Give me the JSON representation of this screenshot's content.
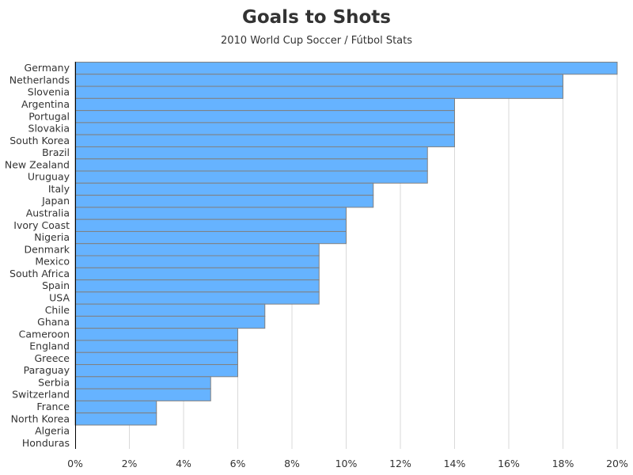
{
  "chart_data": {
    "type": "bar",
    "orientation": "horizontal",
    "title": "Goals to Shots",
    "subtitle": "2010 World Cup Soccer / Fútbol Stats",
    "xlabel": "",
    "ylabel": "",
    "xlim": [
      0,
      20
    ],
    "x_ticks": [
      "0%",
      "2%",
      "4%",
      "6%",
      "8%",
      "10%",
      "12%",
      "14%",
      "16%",
      "18%",
      "20%"
    ],
    "grid": "vertical",
    "bar_color": "#66b3ff",
    "bar_edge_color": "#808080",
    "categories": [
      "Germany",
      "Netherlands",
      "Slovenia",
      "Argentina",
      "Portugal",
      "Slovakia",
      "South Korea",
      "Brazil",
      "New Zealand",
      "Uruguay",
      "Italy",
      "Japan",
      "Australia",
      "Ivory Coast",
      "Nigeria",
      "Denmark",
      "Mexico",
      "South Africa",
      "Spain",
      "USA",
      "Chile",
      "Ghana",
      "Cameroon",
      "England",
      "Greece",
      "Paraguay",
      "Serbia",
      "Switzerland",
      "France",
      "North Korea",
      "Algeria",
      "Honduras"
    ],
    "values": [
      20,
      18,
      18,
      14,
      14,
      14,
      14,
      13,
      13,
      13,
      11,
      11,
      10,
      10,
      10,
      9,
      9,
      9,
      9,
      9,
      7,
      7,
      6,
      6,
      6,
      6,
      5,
      5,
      3,
      3,
      0,
      0
    ]
  }
}
